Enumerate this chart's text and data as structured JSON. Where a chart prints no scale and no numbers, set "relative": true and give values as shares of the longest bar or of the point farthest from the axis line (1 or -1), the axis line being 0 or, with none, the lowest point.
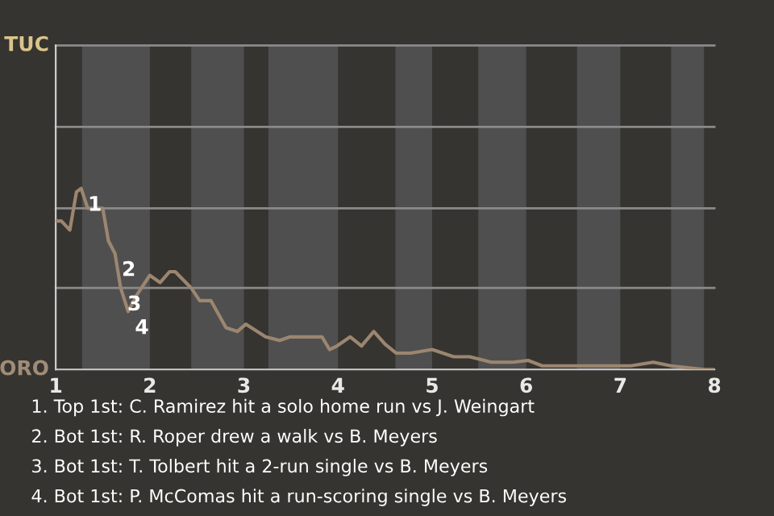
{
  "chart_data": {
    "type": "line",
    "relative": true,
    "x": [
      1.0,
      1.06,
      1.15,
      1.22,
      1.27,
      1.34,
      1.5,
      1.56,
      1.63,
      1.69,
      1.77,
      1.86,
      2.0,
      2.11,
      2.21,
      2.27,
      2.44,
      2.53,
      2.65,
      2.81,
      2.93,
      3.02,
      3.23,
      3.38,
      3.49,
      3.68,
      3.83,
      3.91,
      3.99,
      4.13,
      4.25,
      4.38,
      4.5,
      4.62,
      4.77,
      5.0,
      5.23,
      5.4,
      5.63,
      5.86,
      6.02,
      6.17,
      6.54,
      6.71,
      6.95,
      7.11,
      7.35,
      7.54,
      7.89,
      7.98
    ],
    "series": [
      {
        "color": "#9c8670",
        "values": [
          0.82,
          0.82,
          0.77,
          0.98,
          1.0,
          0.89,
          0.89,
          0.71,
          0.64,
          0.45,
          0.32,
          0.41,
          0.52,
          0.48,
          0.54,
          0.54,
          0.45,
          0.38,
          0.38,
          0.23,
          0.21,
          0.25,
          0.18,
          0.16,
          0.18,
          0.18,
          0.18,
          0.11,
          0.13,
          0.18,
          0.13,
          0.21,
          0.14,
          0.09,
          0.09,
          0.11,
          0.07,
          0.07,
          0.04,
          0.04,
          0.05,
          0.02,
          0.02,
          0.02,
          0.02,
          0.02,
          0.04,
          0.02,
          0.0,
          0.0
        ]
      }
    ],
    "xlim": [
      1,
      8
    ],
    "xticks": [
      1,
      2,
      3,
      4,
      5,
      6,
      7,
      8
    ],
    "ref_lines": [
      {
        "axis": "y",
        "value": 0.45,
        "color": "#8a8a8a"
      },
      {
        "axis": "y",
        "value": 0.89,
        "color": "#8a8a8a"
      },
      {
        "axis": "y",
        "value": 1.34,
        "color": "#8a8a8a"
      },
      {
        "axis": "y",
        "value": 1.79,
        "color": "#8a8a8a"
      }
    ],
    "marker": "none",
    "line_style": "solid",
    "bands": [
      {
        "axis": "x",
        "from": 1.28,
        "to": 2,
        "color": "#4f4f4f"
      },
      {
        "axis": "x",
        "from": 2.44,
        "to": 3,
        "color": "#4f4f4f"
      },
      {
        "axis": "x",
        "from": 3.26,
        "to": 4,
        "color": "#4f4f4f"
      },
      {
        "axis": "x",
        "from": 4.61,
        "to": 5,
        "color": "#4f4f4f"
      },
      {
        "axis": "x",
        "from": 5.49,
        "to": 6,
        "color": "#4f4f4f"
      },
      {
        "axis": "x",
        "from": 6.54,
        "to": 7,
        "color": "#4f4f4f"
      },
      {
        "axis": "x",
        "from": 7.54,
        "to": 7.89,
        "color": "#4f4f4f"
      }
    ],
    "annotations": [
      "TUC",
      "ORO",
      {
        "text": "1",
        "x": 1.27,
        "y": 1.0
      },
      {
        "text": "2",
        "x": 1.63,
        "y": 0.64
      },
      {
        "text": "3",
        "x": 1.69,
        "y": 0.45
      },
      {
        "text": "4",
        "x": 1.77,
        "y": 0.32
      },
      "1. Top 1st: C. Ramirez hit a solo home run vs J. Weingart",
      "2. Bot 1st: R. Roper drew a walk vs B. Meyers",
      "3. Bot 1st: T. Tolbert hit a 2-run single vs B. Meyers",
      "4. Bot 1st: P. McComas hit a run-scoring single vs B. Meyers"
    ]
  }
}
